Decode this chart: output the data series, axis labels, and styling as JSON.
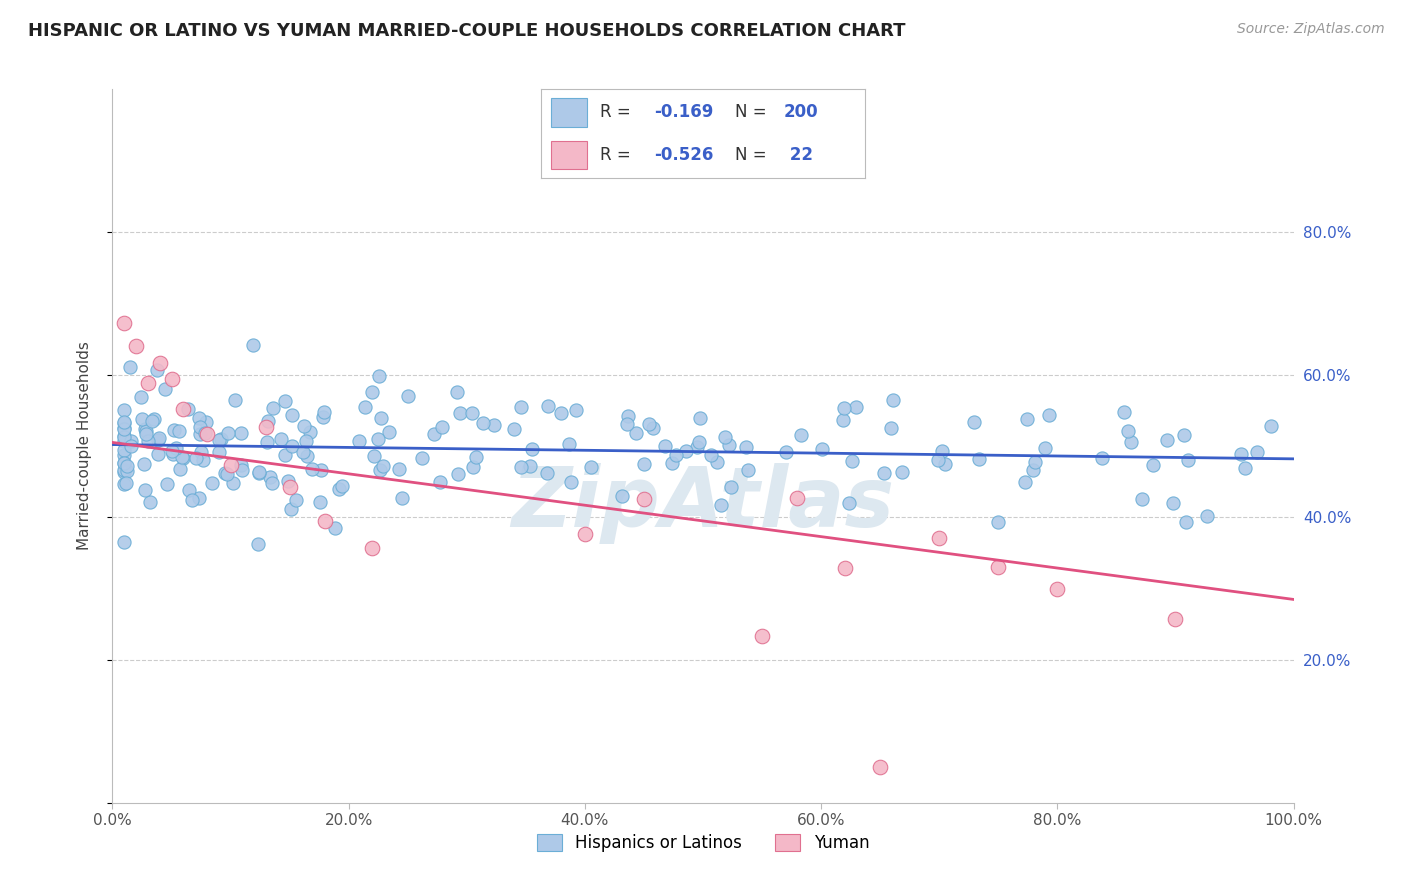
{
  "title": "HISPANIC OR LATINO VS YUMAN MARRIED-COUPLE HOUSEHOLDS CORRELATION CHART",
  "source": "Source: ZipAtlas.com",
  "ylabel": "Married-couple Households",
  "xlabel": "",
  "xlim": [
    0.0,
    1.0
  ],
  "ylim": [
    0.0,
    1.0
  ],
  "xticks": [
    0.0,
    0.2,
    0.4,
    0.6,
    0.8,
    1.0
  ],
  "xtick_labels": [
    "0.0%",
    "20.0%",
    "40.0%",
    "60.0%",
    "80.0%",
    "100.0%"
  ],
  "right_ytick_labels": [
    "80.0%",
    "60.0%",
    "40.0%",
    "20.0%"
  ],
  "right_ytick_positions": [
    0.8,
    0.6,
    0.4,
    0.2
  ],
  "blue_R": -0.169,
  "blue_N": 200,
  "pink_R": -0.526,
  "pink_N": 22,
  "blue_color": "#aec9e8",
  "blue_edge": "#6baed6",
  "blue_line": "#3a5fc8",
  "pink_color": "#f4b8c8",
  "pink_edge": "#e07090",
  "pink_line": "#e05080",
  "watermark_color": "#dde8f0",
  "legend_label_blue": "Hispanics or Latinos",
  "legend_label_pink": "Yuman",
  "grid_color": "#cccccc",
  "background_color": "#ffffff",
  "blue_line_start_y": 0.502,
  "blue_line_end_y": 0.482,
  "pink_line_start_y": 0.505,
  "pink_line_end_y": 0.285
}
